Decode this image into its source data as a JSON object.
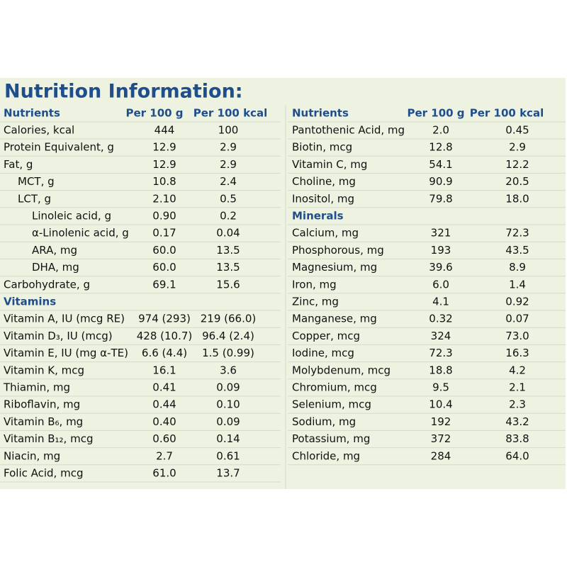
{
  "title": "Nutrition Information:",
  "left": {
    "header": [
      "Nutrients",
      "Per 100 g",
      "Per 100 kcal"
    ],
    "rows": [
      [
        "Calories, kcal",
        "444",
        "100"
      ],
      [
        "Protein Equivalent, g",
        "12.9",
        "2.9"
      ],
      [
        "Fat, g",
        "12.9",
        "2.9"
      ],
      [
        "MCT, g",
        "10.8",
        "2.4"
      ],
      [
        "LCT, g",
        "2.10",
        "0.5"
      ],
      [
        "Linoleic acid, g",
        "0.90",
        "0.2"
      ],
      [
        "α-Linolenic acid, g",
        "0.17",
        "0.04"
      ],
      [
        "ARA, mg",
        "60.0",
        "13.5"
      ],
      [
        "DHA, mg",
        "60.0",
        "13.5"
      ],
      [
        "Carbohydrate, g",
        "69.1",
        "15.6"
      ],
      [
        "Vitamins"
      ],
      [
        "Vitamin A, IU (mcg RE)",
        "974 (293)",
        "219 (66.0)"
      ],
      [
        "Vitamin D₃, IU (mcg)",
        "428 (10.7)",
        "96.4 (2.4)"
      ],
      [
        "Vitamin E, IU (mg α-TE)",
        "6.6 (4.4)",
        "1.5 (0.99)"
      ],
      [
        "Vitamin K, mcg",
        "16.1",
        "3.6"
      ],
      [
        "Thiamin, mg",
        "0.41",
        "0.09"
      ],
      [
        "Riboflavin, mg",
        "0.44",
        "0.10"
      ],
      [
        "Vitamin B₆, mg",
        "0.40",
        "0.09"
      ],
      [
        "Vitamin B₁₂, mcg",
        "0.60",
        "0.14"
      ],
      [
        "Niacin, mg",
        "2.7",
        "0.61"
      ],
      [
        "Folic Acid, mcg",
        "61.0",
        "13.7"
      ]
    ]
  },
  "right": {
    "header": [
      "Nutrients",
      "Per 100 g",
      "Per 100 kcal"
    ],
    "rows": [
      [
        "Pantothenic Acid, mg",
        "2.0",
        "0.45"
      ],
      [
        "Biotin, mcg",
        "12.8",
        "2.9"
      ],
      [
        "Vitamin C, mg",
        "54.1",
        "12.2"
      ],
      [
        "Choline, mg",
        "90.9",
        "20.5"
      ],
      [
        "Inositol, mg",
        "79.8",
        "18.0"
      ],
      [
        "Minerals"
      ],
      [
        "Calcium, mg",
        "321",
        "72.3"
      ],
      [
        "Phosphorous, mg",
        "193",
        "43.5"
      ],
      [
        "Magnesium, mg",
        "39.6",
        "8.9"
      ],
      [
        "Iron, mg",
        "6.0",
        "1.4"
      ],
      [
        "Zinc, mg",
        "4.1",
        "0.92"
      ],
      [
        "Manganese, mg",
        "0.32",
        "0.07"
      ],
      [
        "Copper, mcg",
        "324",
        "73.0"
      ],
      [
        "Iodine, mcg",
        "72.3",
        "16.3"
      ],
      [
        "Molybdenum, mcg",
        "18.8",
        "4.2"
      ],
      [
        "Chromium, mcg",
        "9.5",
        "2.1"
      ],
      [
        "Selenium, mcg",
        "10.4",
        "2.3"
      ],
      [
        "Sodium, mg",
        "192",
        "43.2"
      ],
      [
        "Potassium, mg",
        "372",
        "83.8"
      ],
      [
        "Chloride, mg",
        "284",
        "64.0"
      ]
    ]
  }
}
